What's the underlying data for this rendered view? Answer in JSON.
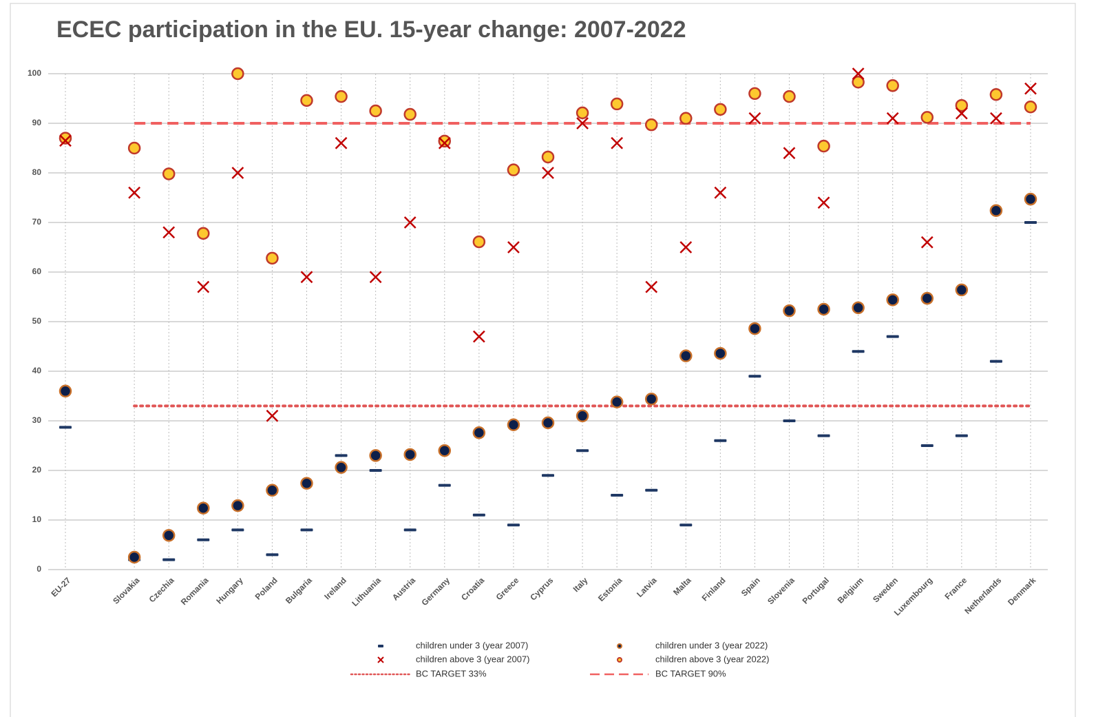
{
  "chart_data": {
    "type": "dot",
    "title": "ECEC participation in the EU. 15-year change: 2007-2022",
    "categories": [
      "EU-27",
      null,
      "Slovakia",
      "Czechia",
      "Romania",
      "Hungary",
      "Poland",
      "Bulgaria",
      "Ireland",
      "Lithuania",
      "Austria",
      "Germany",
      "Croatia",
      "Greece",
      "Cyprus",
      "Italy",
      "Estonia",
      "Latvia",
      "Malta",
      "Finland",
      "Spain",
      "Slovenia",
      "Portugal",
      "Belgium",
      "Sweden",
      "Luxembourg",
      "France",
      "Netherlands",
      "Denmark"
    ],
    "series": [
      {
        "name": "children under 3 (year 2007)",
        "marker": "dash",
        "color": "#1f3864",
        "values": [
          28.7,
          null,
          2,
          2,
          6,
          8,
          3,
          8,
          23,
          20,
          8,
          17,
          11,
          9,
          19,
          24,
          15,
          16,
          9,
          26,
          39,
          30,
          27,
          44,
          47,
          25,
          27,
          42,
          70
        ]
      },
      {
        "name": "children under 3 (year 2022)",
        "marker": "circle",
        "color": "#0d1f4a",
        "edgecolor": "#c8702a",
        "values": [
          36,
          null,
          2.5,
          6.9,
          12.4,
          12.9,
          16,
          17.4,
          20.6,
          23,
          23.2,
          24,
          27.6,
          29.2,
          29.6,
          31,
          33.8,
          34.4,
          43.1,
          43.6,
          48.6,
          52.2,
          52.5,
          52.8,
          54.4,
          54.7,
          56.4,
          72.4,
          74.7
        ]
      },
      {
        "name": "children above 3 (year 2007)",
        "marker": "x",
        "color": "#c00000",
        "values": [
          86.5,
          null,
          76,
          68,
          57,
          80,
          31,
          59,
          86,
          59,
          70,
          86,
          47,
          65,
          80,
          90,
          86,
          57,
          65,
          76,
          91,
          84,
          74,
          100,
          91,
          66,
          92,
          91,
          97
        ]
      },
      {
        "name": "children above 3 (year 2022)",
        "marker": "circle",
        "color": "#fdc82f",
        "edgecolor": "#c0392b",
        "values": [
          87,
          null,
          85,
          79.8,
          67.8,
          100,
          62.8,
          94.6,
          95.4,
          92.5,
          91.8,
          86.4,
          66.1,
          80.6,
          83.2,
          92.1,
          93.9,
          89.7,
          91,
          92.8,
          96,
          95.4,
          85.4,
          98.3,
          97.6,
          91.2,
          93.6,
          95.8,
          93.3
        ]
      }
    ],
    "targets": [
      {
        "name": "BC TARGET 33%",
        "value": 33,
        "style": "dotted",
        "color": "#e05555"
      },
      {
        "name": "BC TARGET 90%",
        "value": 90,
        "style": "dashed",
        "color": "#f06060"
      }
    ],
    "ylim": [
      0,
      100
    ],
    "yticks": [
      0,
      10,
      20,
      30,
      40,
      50,
      60,
      70,
      80,
      90,
      100
    ],
    "grid": true
  }
}
